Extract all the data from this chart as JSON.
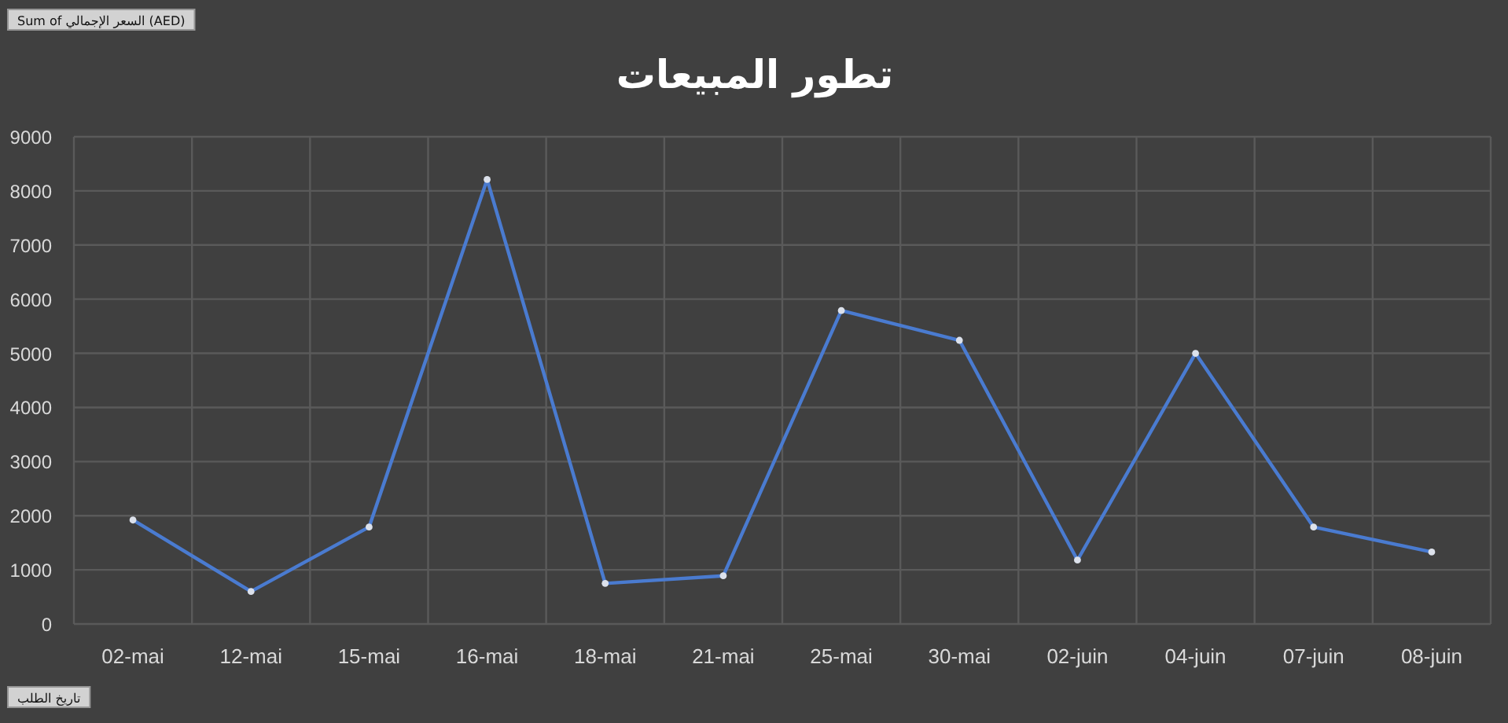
{
  "chart_data": {
    "type": "line",
    "title": "تطور المبيعات",
    "annotations": [
      "Sum of السعر الإجمالي (AED)",
      "تاريخ الطلب"
    ],
    "categories": [
      "02-mai",
      "12-mai",
      "15-mai",
      "16-mai",
      "18-mai",
      "21-mai",
      "25-mai",
      "30-mai",
      "02-juin",
      "04-juin",
      "07-juin",
      "08-juin"
    ],
    "series": [
      {
        "color": "#4a7bd0",
        "values": [
          1920,
          600,
          1790,
          8210,
          750,
          890,
          5790,
          5240,
          1180,
          5000,
          1790,
          1330
        ]
      }
    ],
    "ylim": [
      0,
      9000
    ],
    "yticks": [
      0,
      1000,
      2000,
      3000,
      4000,
      5000,
      6000,
      7000,
      8000,
      9000
    ],
    "grid": true,
    "marker": "circle"
  }
}
